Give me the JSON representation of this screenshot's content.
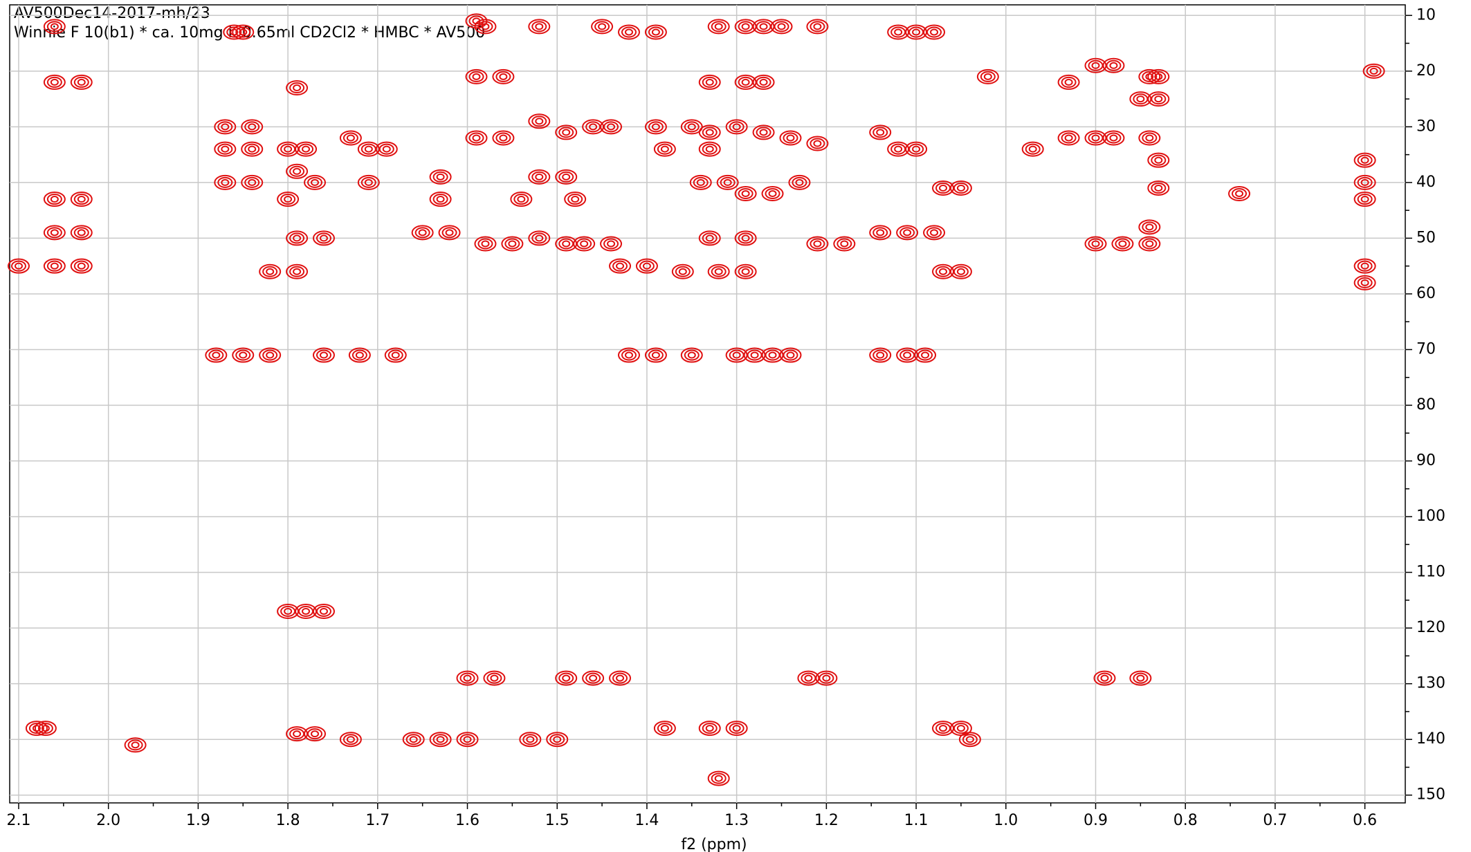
{
  "chart_data": {
    "type": "contour",
    "title": "AV500Dec14-2017-mh/23",
    "subtitle": "Winnie F 10(b1) * ca. 10mg i. 0.65ml CD2Cl2 * HMBC * AV500",
    "x_label": "f2 (ppm)",
    "color": "#e01010",
    "grid": true,
    "xlim": [
      2.11,
      0.555
    ],
    "ylim": [
      8.1,
      151.4
    ],
    "xticks": [
      2.1,
      {
        "value": 2,
        "label": "2.0"
      },
      1.9,
      1.8,
      1.7,
      1.6,
      1.5,
      1.4,
      1.3,
      1.2,
      1.1,
      {
        "value": 1,
        "label": "1.0"
      },
      0.9,
      0.8,
      0.7,
      0.6
    ],
    "yticks": [
      10,
      20,
      30,
      40,
      50,
      60,
      70,
      80,
      90,
      100,
      110,
      120,
      130,
      140,
      150
    ],
    "x": [
      2.06,
      1.86,
      1.85,
      1.59,
      1.58,
      1.52,
      1.45,
      1.42,
      1.39,
      1.32,
      1.29,
      1.27,
      1.25,
      1.21,
      1.12,
      1.1,
      1.08,
      2.06,
      2.03,
      1.79,
      1.59,
      1.56,
      1.33,
      1.29,
      1.27,
      1.02,
      0.93,
      0.9,
      0.88,
      0.84,
      0.83,
      0.85,
      0.83,
      0.59,
      1.87,
      1.84,
      1.87,
      1.84,
      1.8,
      1.78,
      1.73,
      1.71,
      1.69,
      1.59,
      1.56,
      1.52,
      1.49,
      1.46,
      1.44,
      1.39,
      1.38,
      1.35,
      1.33,
      1.33,
      1.3,
      1.27,
      1.24,
      1.21,
      1.14,
      1.12,
      1.1,
      0.97,
      0.93,
      0.9,
      0.88,
      0.84,
      0.83,
      0.6,
      1.87,
      1.84,
      1.79,
      1.77,
      1.71,
      1.63,
      1.63,
      1.54,
      1.52,
      1.49,
      1.48,
      1.34,
      1.31,
      1.29,
      1.26,
      1.23,
      1.07,
      1.05,
      0.83,
      0.74,
      0.6,
      0.6,
      2.06,
      2.03,
      1.8,
      2.06,
      2.03,
      2.06,
      2.03,
      1.79,
      1.76,
      1.65,
      1.62,
      1.58,
      1.55,
      1.52,
      1.49,
      1.47,
      1.44,
      1.33,
      1.29,
      1.21,
      1.18,
      1.14,
      1.11,
      1.08,
      0.9,
      0.87,
      0.84,
      0.84,
      1.07,
      1.05,
      1.82,
      1.79,
      1.43,
      1.4,
      1.36,
      1.32,
      1.29,
      2.1,
      0.6,
      0.6,
      1.88,
      1.85,
      1.82,
      1.76,
      1.72,
      1.68,
      1.42,
      1.39,
      1.35,
      1.3,
      1.28,
      1.26,
      1.24,
      1.14,
      1.11,
      1.09,
      1.8,
      1.78,
      1.76,
      1.6,
      1.57,
      1.49,
      1.46,
      1.43,
      1.22,
      1.2,
      0.89,
      0.85,
      2.08,
      2.07,
      1.97,
      1.79,
      1.77,
      1.73,
      1.66,
      1.63,
      1.6,
      1.53,
      1.5,
      1.38,
      1.33,
      1.3,
      1.07,
      1.05,
      1.04,
      1.32
    ],
    "values": [
      12,
      13,
      13,
      11,
      12,
      12,
      12,
      13,
      13,
      12,
      12,
      12,
      12,
      12,
      13,
      13,
      13,
      22,
      22,
      23,
      21,
      21,
      22,
      22,
      22,
      21,
      22,
      19,
      19,
      21,
      21,
      25,
      25,
      20,
      30,
      30,
      34,
      34,
      34,
      34,
      32,
      34,
      34,
      32,
      32,
      29,
      31,
      30,
      30,
      30,
      34,
      30,
      31,
      34,
      30,
      31,
      32,
      33,
      31,
      34,
      34,
      34,
      32,
      32,
      32,
      32,
      36,
      36,
      40,
      40,
      38,
      40,
      40,
      39,
      43,
      43,
      39,
      39,
      43,
      40,
      40,
      42,
      42,
      40,
      41,
      41,
      41,
      42,
      40,
      43,
      43,
      43,
      43,
      49,
      49,
      55,
      55,
      50,
      50,
      49,
      49,
      51,
      51,
      50,
      51,
      51,
      51,
      50,
      50,
      51,
      51,
      49,
      49,
      49,
      51,
      51,
      51,
      48,
      56,
      56,
      56,
      56,
      55,
      55,
      56,
      56,
      56,
      55,
      55,
      58,
      71,
      71,
      71,
      71,
      71,
      71,
      71,
      71,
      71,
      71,
      71,
      71,
      71,
      71,
      71,
      71,
      117,
      117,
      117,
      129,
      129,
      129,
      129,
      129,
      129,
      129,
      129,
      129,
      138,
      138,
      141,
      139,
      139,
      140,
      140,
      140,
      140,
      140,
      140,
      138,
      138,
      138,
      138,
      138,
      140,
      147
    ]
  }
}
